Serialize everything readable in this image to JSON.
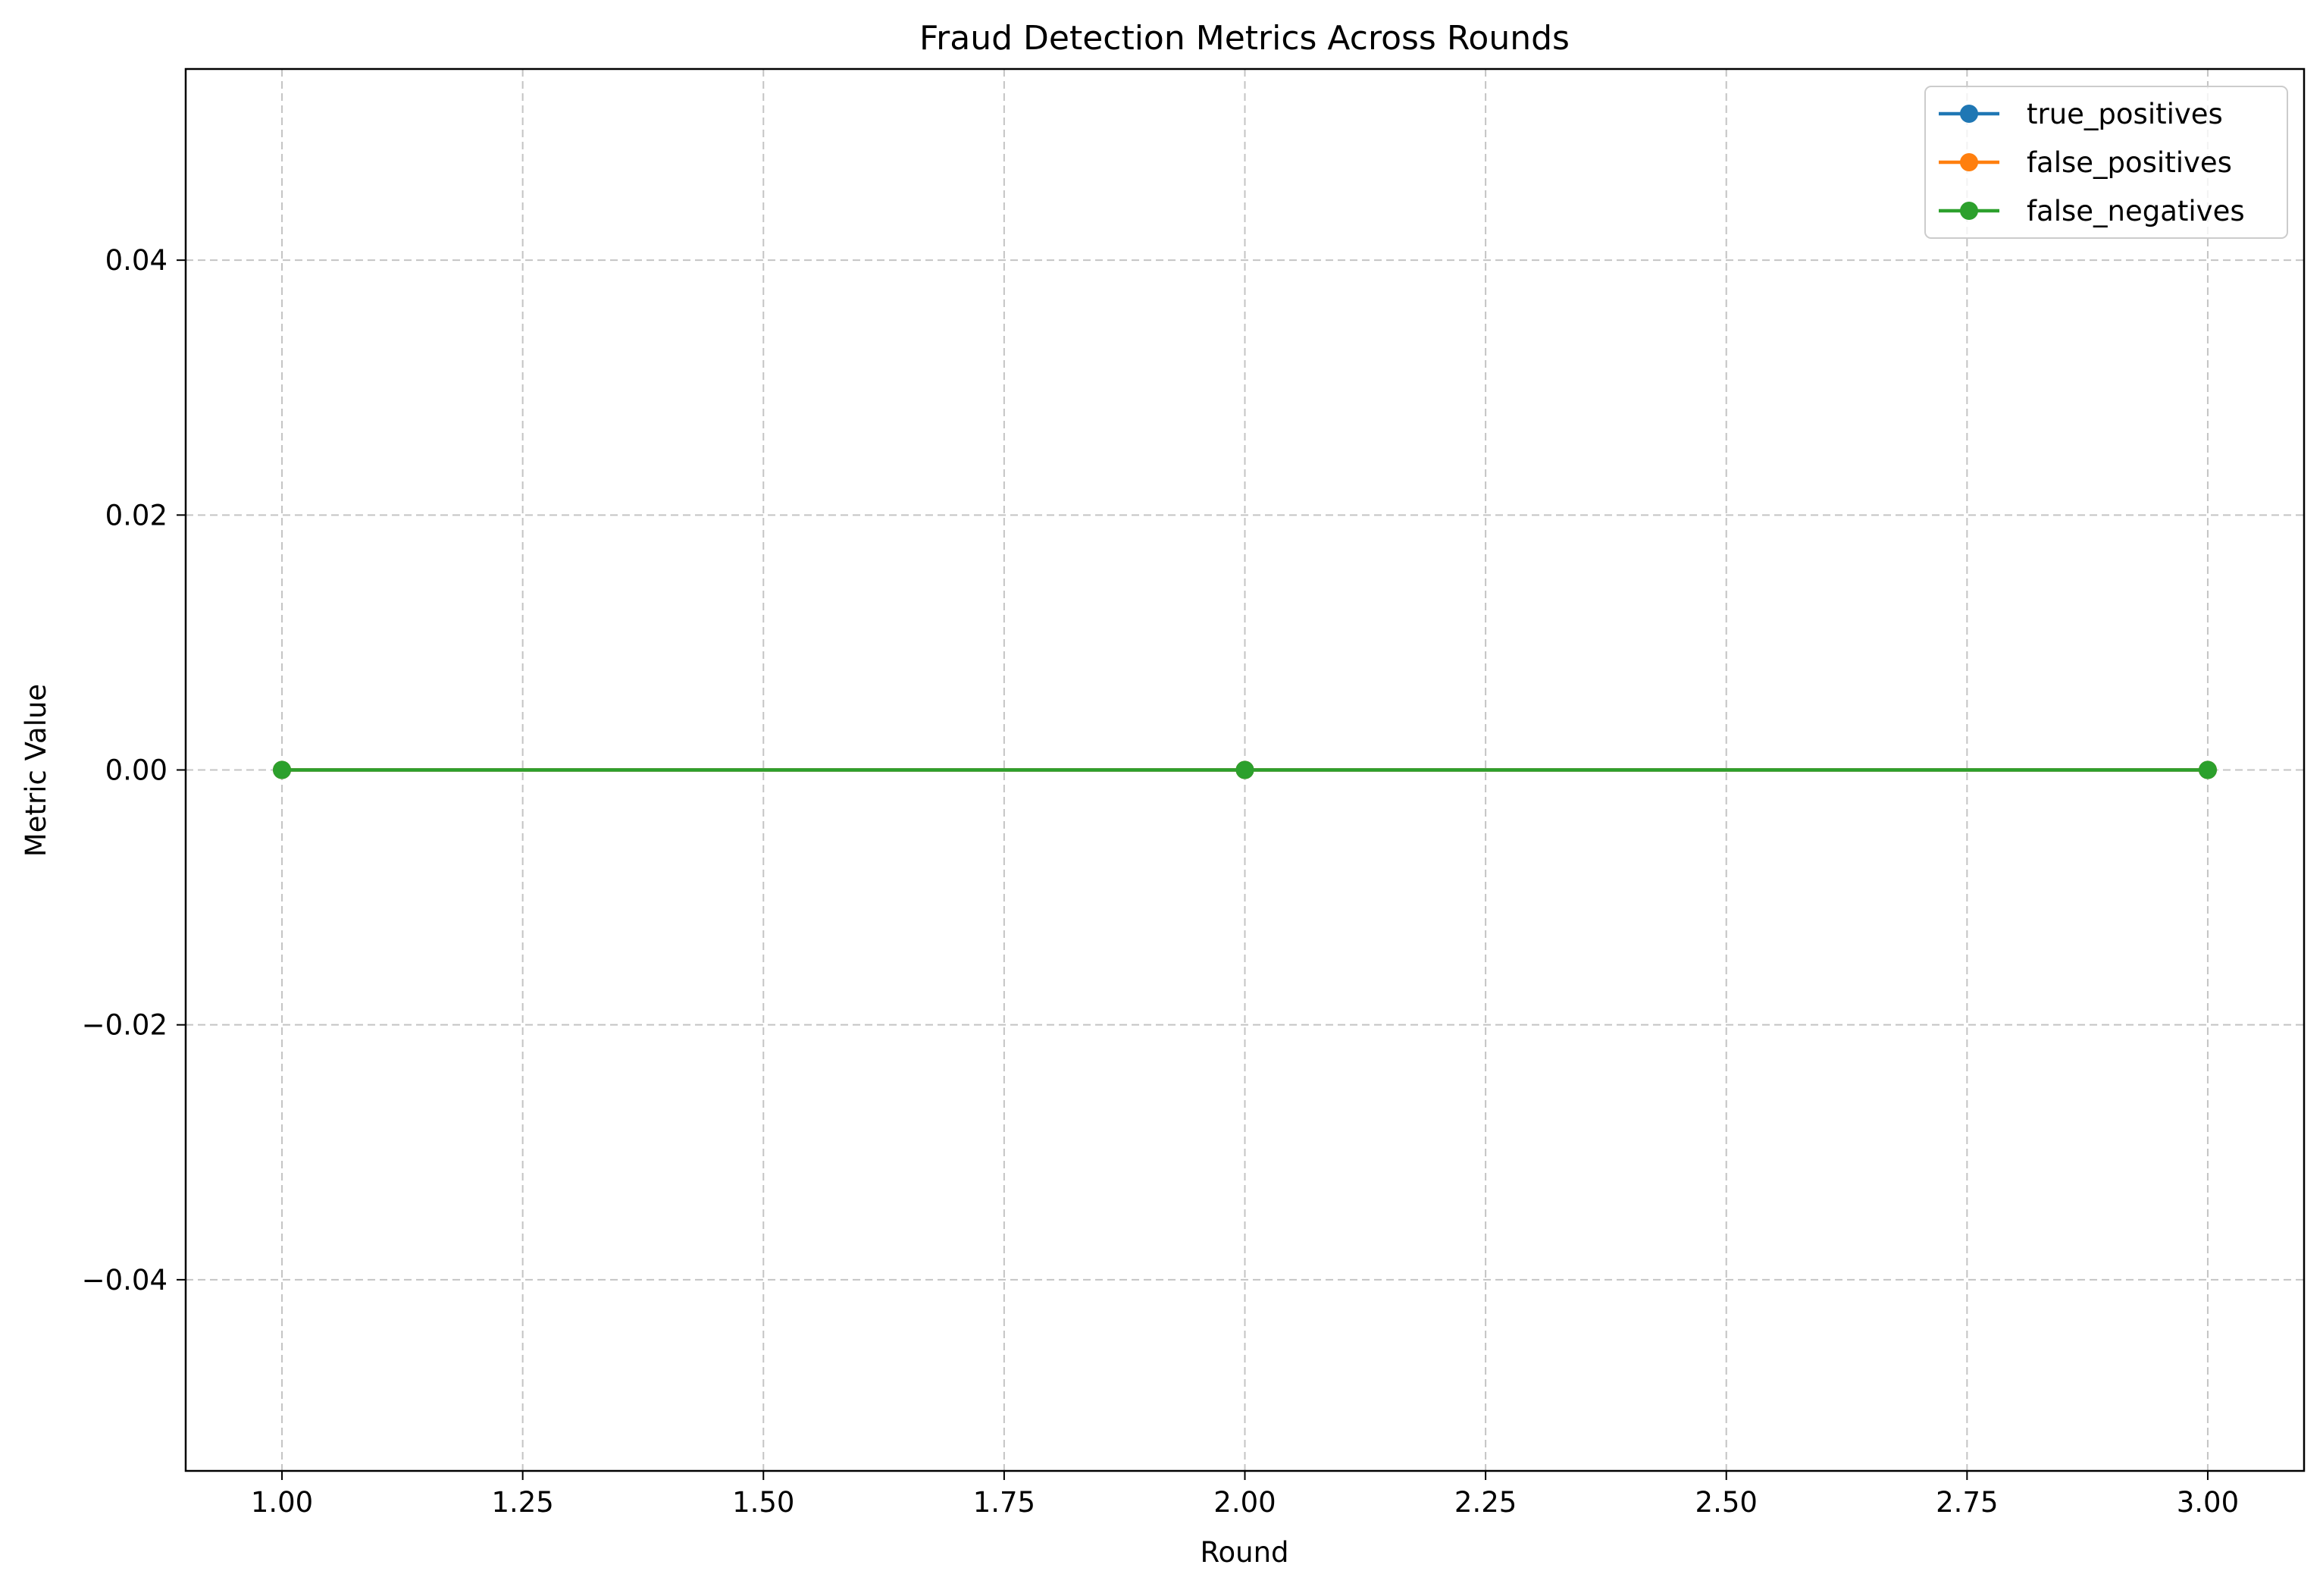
{
  "chart_data": {
    "type": "line",
    "title": "Fraud Detection Metrics Across Rounds",
    "xlabel": "Round",
    "ylabel": "Metric Value",
    "x": [
      1,
      2,
      3
    ],
    "xlim": [
      0.9,
      3.1
    ],
    "ylim": [
      -0.055,
      0.055
    ],
    "xticks": [
      1.0,
      1.25,
      1.5,
      1.75,
      2.0,
      2.25,
      2.5,
      2.75,
      3.0
    ],
    "xtick_labels": [
      "1.00",
      "1.25",
      "1.50",
      "1.75",
      "2.00",
      "2.25",
      "2.50",
      "2.75",
      "3.00"
    ],
    "yticks": [
      -0.04,
      -0.02,
      0.0,
      0.02,
      0.04
    ],
    "ytick_labels": [
      "−0.04",
      "−0.02",
      "0.00",
      "0.02",
      "0.04"
    ],
    "grid": true,
    "legend_position": "top-right",
    "series": [
      {
        "name": "true_positives",
        "values": [
          0,
          0,
          0
        ],
        "color": "#1f77b4"
      },
      {
        "name": "false_positives",
        "values": [
          0,
          0,
          0
        ],
        "color": "#ff7f0e"
      },
      {
        "name": "false_negatives",
        "values": [
          0,
          0,
          0
        ],
        "color": "#2ca02c"
      }
    ]
  }
}
